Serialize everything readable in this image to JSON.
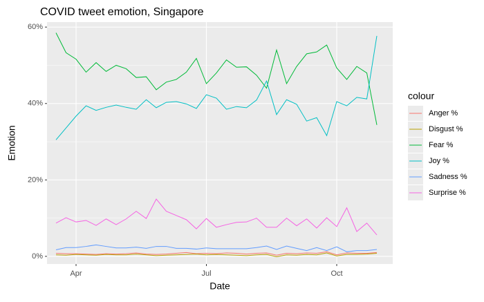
{
  "chart_data": {
    "type": "line",
    "title": "COVID tweet emotion, Singapore",
    "x_label": "Date",
    "y_label": "Emotion",
    "legend_title": "colour",
    "legend_position": "right",
    "grid": true,
    "categories": [
      null,
      null,
      "Apr",
      null,
      null,
      null,
      null,
      null,
      null,
      null,
      null,
      null,
      null,
      null,
      null,
      "Jul",
      null,
      null,
      null,
      null,
      null,
      null,
      null,
      null,
      null,
      null,
      null,
      null,
      "Oct",
      null,
      null,
      null,
      null
    ],
    "ylim": [
      -2,
      61.3
    ],
    "yticks": [
      {
        "value": 0,
        "label": "0%"
      },
      {
        "value": 20,
        "label": "20%"
      },
      {
        "value": 40,
        "label": "40%"
      },
      {
        "value": 60,
        "label": "60%"
      }
    ],
    "series": [
      {
        "name": "Anger %",
        "color": "#F8766D",
        "values": [
          0.8,
          0.7,
          0.7,
          0.6,
          0.5,
          0.7,
          0.6,
          0.7,
          0.9,
          0.6,
          0.5,
          0.6,
          0.8,
          1,
          0.7,
          0.8,
          0.7,
          0.9,
          0.8,
          0.6,
          0.8,
          0.9,
          0.3,
          0.8,
          0.7,
          0.9,
          0.8,
          1.2,
          0.4,
          0.9,
          0.8,
          0.8,
          1
        ]
      },
      {
        "name": "Disgust %",
        "color": "#B79F00",
        "values": [
          0.4,
          0.3,
          0.5,
          0.4,
          0.3,
          0.5,
          0.4,
          0.4,
          0.6,
          0.4,
          0.2,
          0.3,
          0.4,
          0.5,
          0.6,
          0.4,
          0.5,
          0.4,
          0.3,
          0.2,
          0.4,
          0.5,
          -0.1,
          0.4,
          0.3,
          0.5,
          0.4,
          0.9,
          0.1,
          0.5,
          0.5,
          0.6,
          0.8
        ]
      },
      {
        "name": "Fear %",
        "color": "#00BA38",
        "values": [
          58.5,
          53.3,
          51.6,
          48.2,
          50.7,
          48.4,
          50,
          49.1,
          46.8,
          47,
          43.6,
          45.6,
          46.3,
          48.2,
          51.8,
          45.2,
          48,
          51.4,
          49.5,
          49.6,
          47.4,
          44,
          54,
          45.2,
          49.7,
          53,
          53.5,
          55.3,
          49.3,
          46.3,
          49.7,
          48,
          34.4
        ]
      },
      {
        "name": "Joy %",
        "color": "#00BFC4",
        "values": [
          30.5,
          33.6,
          36.7,
          39.4,
          38.2,
          39,
          39.6,
          39,
          38.5,
          41,
          38.9,
          40.3,
          40.5,
          39.9,
          38.7,
          42.3,
          41.4,
          38.5,
          39.2,
          38.9,
          40.9,
          45.9,
          37.1,
          41,
          39.8,
          35.4,
          36.3,
          31.6,
          40.5,
          39.4,
          41.6,
          41.2,
          57.7
        ]
      },
      {
        "name": "Sadness %",
        "color": "#619CFF",
        "values": [
          1.7,
          2.3,
          2.3,
          2.6,
          3,
          2.6,
          2.2,
          2.2,
          2.4,
          2.1,
          2.6,
          2.6,
          2.1,
          2.1,
          1.9,
          2.2,
          2,
          2,
          2,
          2,
          2.3,
          2.7,
          1.8,
          2.7,
          2.1,
          1.5,
          2.3,
          1.5,
          2.5,
          1.2,
          1.5,
          1.5,
          1.8
        ]
      },
      {
        "name": "Surprise %",
        "color": "#F564E3",
        "values": [
          8.7,
          10.1,
          9,
          9.4,
          8.1,
          9.8,
          8.3,
          9.8,
          11.8,
          9.9,
          15,
          11.8,
          10.7,
          9.6,
          7.2,
          9.9,
          7.6,
          8.3,
          8.9,
          9,
          10,
          7.6,
          7.6,
          10,
          8,
          9.8,
          7.4,
          10.1,
          7.8,
          12.7,
          6.5,
          8.7,
          5.6
        ]
      }
    ]
  }
}
